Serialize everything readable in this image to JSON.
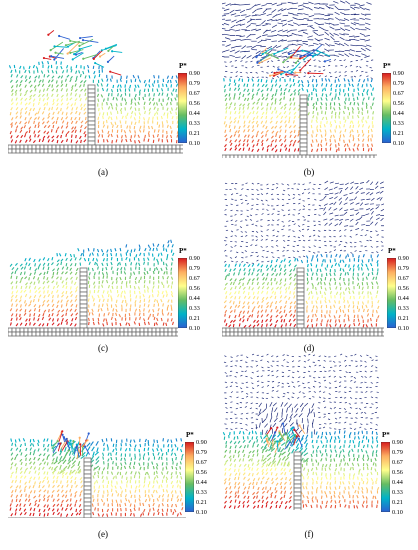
{
  "figure": {
    "colorbar_title": "P*",
    "colorbar_ticks": [
      "0.90",
      "0.79",
      "0.67",
      "0.56",
      "0.44",
      "0.33",
      "0.21",
      "0.10"
    ],
    "colors": {
      "high": "#d7191c",
      "mid_high": "#fdae61",
      "mid": "#ffff8c",
      "mid_low": "#66bd63",
      "low": "#00b3c8",
      "lowest": "#2b5fd1",
      "air_particles": "#1e2a78",
      "wall": "#6b6b6b"
    },
    "panels": [
      {
        "id": "a",
        "caption": "(a)",
        "phase": "water-only",
        "wave": "overtopping splash"
      },
      {
        "id": "b",
        "caption": "(b)",
        "phase": "water-air",
        "wave": "overtopping splash"
      },
      {
        "id": "c",
        "caption": "(c)",
        "phase": "water-only",
        "wave": "rising crest"
      },
      {
        "id": "d",
        "caption": "(d)",
        "phase": "water-air",
        "wave": "rising crest"
      },
      {
        "id": "e",
        "caption": "(e)",
        "phase": "water-only",
        "wave": "plunging jet"
      },
      {
        "id": "f",
        "caption": "(f)",
        "phase": "water-air",
        "wave": "plunging jet"
      }
    ]
  }
}
